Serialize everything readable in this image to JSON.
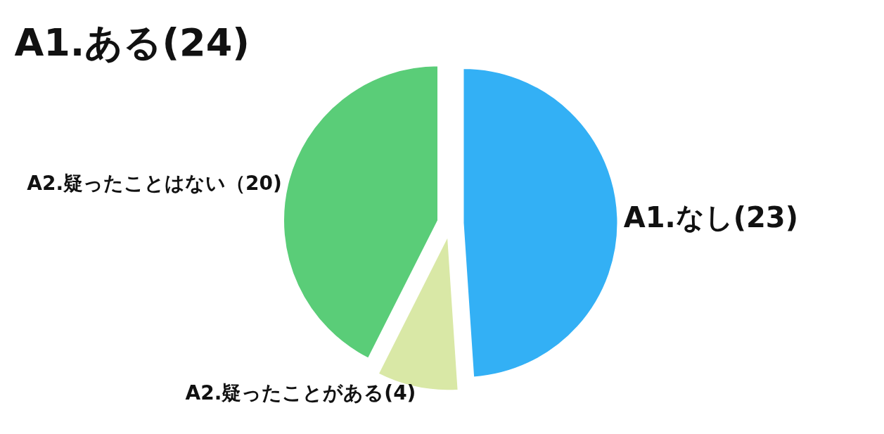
{
  "chart_data": {
    "type": "pie",
    "categories": [
      "A1.なし(23)",
      "A2.疑ったことがある(4)",
      "A2.疑ったことはない（20)"
    ],
    "values": [
      23,
      4,
      20
    ],
    "colors": [
      "#33b0f5",
      "#d9e8a6",
      "#5acd78"
    ],
    "annotations": [
      "A1.ある(24)"
    ],
    "legend": false
  }
}
